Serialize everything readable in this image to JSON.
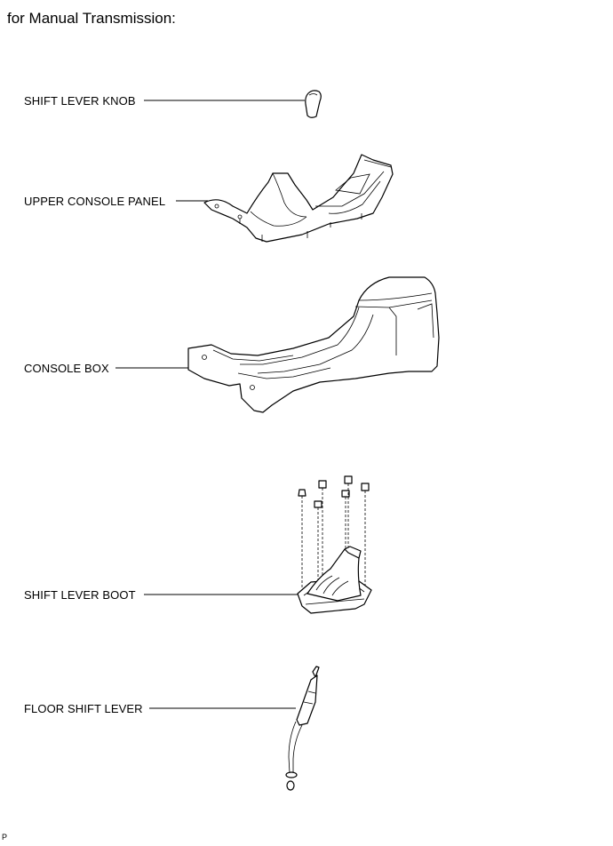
{
  "title": "for Manual Transmission:",
  "labels": {
    "shift_lever_knob": "SHIFT LEVER KNOB",
    "upper_console_panel": "UPPER CONSOLE PANEL",
    "console_box": "CONSOLE BOX",
    "shift_lever_boot": "SHIFT LEVER BOOT",
    "floor_shift_lever": "FLOOR SHIFT LEVER"
  },
  "footer_code": "P"
}
